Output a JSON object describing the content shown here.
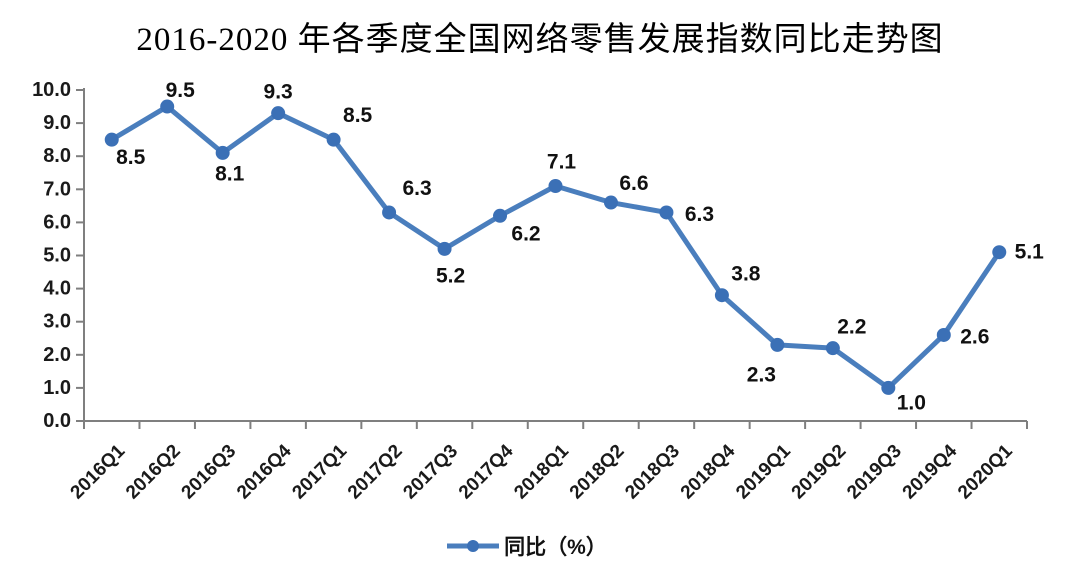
{
  "page": {
    "background": "#FFFFFF"
  },
  "chart_data": {
    "type": "line",
    "title": "2016-2020 年各季度全国网络零售发展指数同比走势图",
    "xlabel": "",
    "ylabel": "",
    "grid": false,
    "categories": [
      "2016Q1",
      "2016Q2",
      "2016Q3",
      "2016Q4",
      "2017Q1",
      "2017Q2",
      "2017Q3",
      "2017Q4",
      "2018Q1",
      "2018Q2",
      "2018Q3",
      "2018Q4",
      "2019Q1",
      "2019Q2",
      "2019Q3",
      "2019Q4",
      "2020Q1"
    ],
    "series": [
      {
        "name": "同比（%）",
        "values": [
          8.5,
          9.5,
          8.1,
          9.3,
          8.5,
          6.3,
          5.2,
          6.2,
          7.1,
          6.6,
          6.3,
          3.8,
          2.3,
          2.2,
          1.0,
          2.6,
          5.1
        ]
      }
    ],
    "data_labels": [
      "8.5",
      "9.5",
      "8.1",
      "9.3",
      "8.5",
      "6.3",
      "5.2",
      "6.2",
      "7.1",
      "6.6",
      "6.3",
      "3.8",
      "2.3",
      "2.2",
      "1.0",
      "2.6",
      "5.1"
    ],
    "ylim": [
      0,
      10
    ],
    "y_tick_step": 1,
    "y_tick_labels": [
      "0.0",
      "1.0",
      "2.0",
      "3.0",
      "4.0",
      "5.0",
      "6.0",
      "7.0",
      "8.0",
      "9.0",
      "10.0"
    ],
    "legend": {
      "label": "同比（%）",
      "position": "bottom-center"
    },
    "colors": {
      "line": "#4A7EBD",
      "marker": "#3B70B6",
      "axis": "#7F7F7F",
      "tick_label": "#1A1A1A",
      "data_label": "#111111",
      "title": "#000000"
    }
  }
}
